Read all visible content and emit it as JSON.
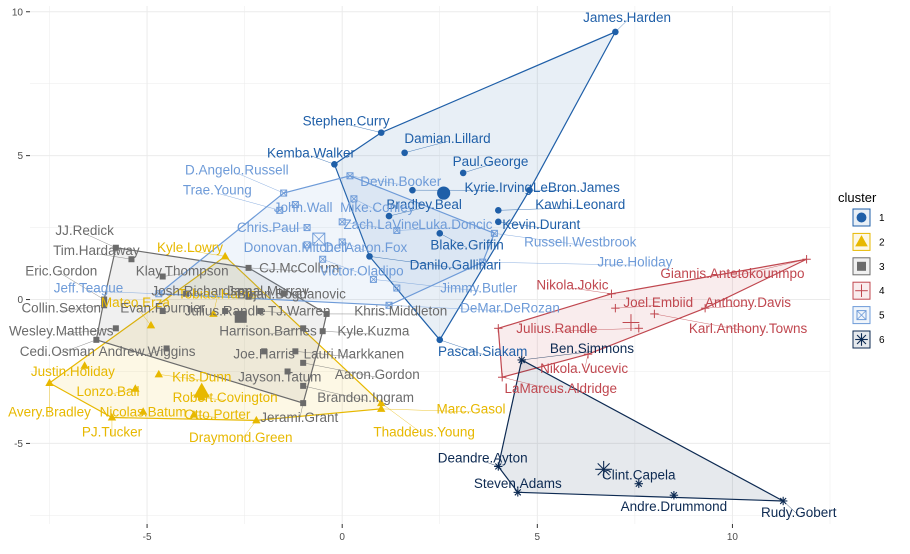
{
  "chart_data": {
    "type": "scatter",
    "title": "",
    "xlabel": "",
    "ylabel": "",
    "xlim": [
      -8.0,
      12.5
    ],
    "ylim": [
      -7.8,
      10.2
    ],
    "x_ticks": [
      -5,
      0,
      5,
      10
    ],
    "y_ticks": [
      -5,
      0,
      5,
      10
    ],
    "x_tick_labels": [
      "-5",
      "0",
      "5",
      "10"
    ],
    "y_tick_labels": [
      "-5",
      "0",
      "5",
      "10"
    ],
    "grid": true,
    "legend": {
      "title": "cluster",
      "position": "right",
      "entries": [
        {
          "label": "1",
          "cluster": 1
        },
        {
          "label": "2",
          "cluster": 2
        },
        {
          "label": "3",
          "cluster": 3
        },
        {
          "label": "4",
          "cluster": 4
        },
        {
          "label": "5",
          "cluster": 5
        },
        {
          "label": "6",
          "cluster": 6
        }
      ]
    },
    "colors": {
      "1": "#1f5fa8",
      "2": "#e7b800",
      "3": "#6b6b6b",
      "4": "#c0474f",
      "5": "#6e9bd8",
      "6": "#0d2a52"
    },
    "centroids": [
      {
        "cluster": 1,
        "x": 2.6,
        "y": 3.7
      },
      {
        "cluster": 2,
        "x": -3.6,
        "y": -3.2
      },
      {
        "cluster": 3,
        "x": -2.6,
        "y": -0.6
      },
      {
        "cluster": 4,
        "x": 7.4,
        "y": -0.8
      },
      {
        "cluster": 5,
        "x": -0.6,
        "y": 2.1
      },
      {
        "cluster": 6,
        "x": 6.7,
        "y": -5.9
      }
    ],
    "series": [
      {
        "cluster": 1,
        "points": [
          {
            "x": 7.0,
            "y": 9.3,
            "label": "James.Harden",
            "lx": 7.3,
            "ly": 9.8
          },
          {
            "x": 1.0,
            "y": 5.8,
            "label": "Stephen.Curry",
            "lx": 0.1,
            "ly": 6.2
          },
          {
            "x": 1.6,
            "y": 5.1,
            "label": "Damian.Lillard",
            "lx": 2.7,
            "ly": 5.6
          },
          {
            "x": -0.2,
            "y": 4.7,
            "label": "Kemba.Walker",
            "lx": -0.8,
            "ly": 5.1
          },
          {
            "x": 3.1,
            "y": 4.4,
            "label": "Paul.George",
            "lx": 3.8,
            "ly": 4.8
          },
          {
            "x": 1.8,
            "y": 3.8,
            "label": "Kyrie.Irving",
            "lx": 4.0,
            "ly": 3.9
          },
          {
            "x": 4.8,
            "y": 3.8,
            "label": "LeBron.James",
            "lx": 6.0,
            "ly": 3.9
          },
          {
            "x": 1.2,
            "y": 2.9,
            "label": "Bradley.Beal",
            "lx": 2.1,
            "ly": 3.3
          },
          {
            "x": 4.0,
            "y": 3.1,
            "label": "Kawhi.Leonard",
            "lx": 6.1,
            "ly": 3.3
          },
          {
            "x": 4.0,
            "y": 2.7,
            "label": "Kevin.Durant",
            "lx": 5.1,
            "ly": 2.6
          },
          {
            "x": 2.5,
            "y": 2.3,
            "label": "Blake.Griffin",
            "lx": 3.2,
            "ly": 1.9
          },
          {
            "x": 0.7,
            "y": 1.5,
            "label": "Danilo.Gallinari",
            "lx": 2.9,
            "ly": 1.2
          },
          {
            "x": 2.5,
            "y": -1.4,
            "label": "Pascal.Siakam",
            "lx": 3.6,
            "ly": -1.8
          }
        ]
      },
      {
        "cluster": 2,
        "points": [
          {
            "x": -3.0,
            "y": 1.5,
            "label": "Kyle.Lowry",
            "lx": -3.9,
            "ly": 1.8
          },
          {
            "x": -4.9,
            "y": -0.9,
            "label": "Mateo.Erza",
            "lx": -5.3,
            "ly": -0.1
          },
          {
            "x": -6.6,
            "y": -2.3,
            "label": "Justin.Holiday",
            "lx": -6.9,
            "ly": -2.5
          },
          {
            "x": -4.7,
            "y": -2.6,
            "label": "Kris.Dunn",
            "lx": -3.6,
            "ly": -2.7
          },
          {
            "x": -5.3,
            "y": -3.1,
            "label": "Lonzo.Ball",
            "lx": -6.0,
            "ly": -3.2
          },
          {
            "x": -7.5,
            "y": -2.9,
            "label": "Avery.Bradley",
            "lx": -7.5,
            "ly": -3.9
          },
          {
            "x": -5.1,
            "y": -3.9,
            "label": "Nicolas.Batum",
            "lx": -5.1,
            "ly": -3.9
          },
          {
            "x": -3.6,
            "y": -3.4,
            "label": "Robert.Covington",
            "lx": -3.0,
            "ly": -3.4
          },
          {
            "x": -3.8,
            "y": -4.0,
            "label": "Otto.Porter",
            "lx": -3.2,
            "ly": -4.0
          },
          {
            "x": -5.9,
            "y": -4.1,
            "label": "PJ.Tucker",
            "lx": -5.9,
            "ly": -4.6
          },
          {
            "x": -2.2,
            "y": -4.2,
            "label": "Draymond.Green",
            "lx": -2.6,
            "ly": -4.8
          },
          {
            "x": 1.0,
            "y": -3.8,
            "label": "Marc.Gasol",
            "lx": 3.3,
            "ly": -3.8
          },
          {
            "x": 1.0,
            "y": -3.6,
            "label": "Thaddeus.Young",
            "lx": 2.1,
            "ly": -4.6
          },
          {
            "x": -3.3,
            "y": -0.5,
            "label": "Tobias.Harris",
            "lx": -3.2,
            "ly": 0.2
          }
        ]
      },
      {
        "cluster": 3,
        "points": [
          {
            "x": -5.8,
            "y": 1.8,
            "label": "JJ.Redick",
            "lx": -6.6,
            "ly": 2.4
          },
          {
            "x": -5.4,
            "y": 1.4,
            "label": "Tim.Hardaway",
            "lx": -6.3,
            "ly": 1.7
          },
          {
            "x": -4.6,
            "y": 0.8,
            "label": "Klay.Thompson",
            "lx": -4.1,
            "ly": 1.0
          },
          {
            "x": -6.1,
            "y": 0.0,
            "label": "Eric.Gordon",
            "lx": -7.2,
            "ly": 1.0
          },
          {
            "x": -2.4,
            "y": 1.1,
            "label": "CJ.McCollum",
            "lx": -1.1,
            "ly": 1.1
          },
          {
            "x": -4.0,
            "y": 0.2,
            "label": "Josh.Richardson",
            "lx": -3.6,
            "ly": 0.3
          },
          {
            "x": -2.4,
            "y": 0.1,
            "label": "Jamal.Murray",
            "lx": -1.9,
            "ly": 0.3
          },
          {
            "x": -1.5,
            "y": 0.2,
            "label": "Bojan.Bogdanovic",
            "lx": -1.3,
            "ly": 0.2
          },
          {
            "x": -6.1,
            "y": -0.2,
            "label": "Collin.Sexton",
            "lx": -7.2,
            "ly": -0.3
          },
          {
            "x": -4.6,
            "y": -0.4,
            "label": "Evan.Fournier",
            "lx": -4.6,
            "ly": -0.3
          },
          {
            "x": -2.1,
            "y": -0.4,
            "label": "TJ.Warren",
            "lx": -1.1,
            "ly": -0.4
          },
          {
            "x": -0.4,
            "y": -0.5,
            "label": "Khris.Middleton",
            "lx": 1.5,
            "ly": -0.4
          },
          {
            "x": -5.8,
            "y": -1.0,
            "label": "Wesley.Matthews",
            "lx": -7.2,
            "ly": -1.1
          },
          {
            "x": -1.0,
            "y": -1.0,
            "label": "Harrison.Barnes",
            "lx": -1.9,
            "ly": -1.1
          },
          {
            "x": -0.5,
            "y": -1.1,
            "label": "Kyle.Kuzma",
            "lx": 0.8,
            "ly": -1.1
          },
          {
            "x": -6.3,
            "y": -1.4,
            "label": "Cedi.Osman",
            "lx": -7.3,
            "ly": -1.8
          },
          {
            "x": -4.5,
            "y": -1.7,
            "label": "Andrew.Wiggins",
            "lx": -5.0,
            "ly": -1.8
          },
          {
            "x": -2.0,
            "y": -1.8,
            "label": "Joe.Harris",
            "lx": -2.0,
            "ly": -1.9
          },
          {
            "x": -1.2,
            "y": -1.8,
            "label": "Lauri.Markkanen",
            "lx": 0.3,
            "ly": -1.9
          },
          {
            "x": -1.0,
            "y": -2.2,
            "label": "Aaron.Gordon",
            "lx": 0.9,
            "ly": -2.6
          },
          {
            "x": -1.4,
            "y": -2.5,
            "label": "Jayson.Tatum",
            "lx": -1.6,
            "ly": -2.7
          },
          {
            "x": -1.0,
            "y": -3.0,
            "label": "Brandon.Ingram",
            "lx": 0.6,
            "ly": -3.4
          },
          {
            "x": -1.0,
            "y": -3.6,
            "label": "Jerami.Grant",
            "lx": -1.1,
            "ly": -4.1
          },
          {
            "x": -3.0,
            "y": -0.4,
            "label": "Julius.Randle",
            "lx": -3.0,
            "ly": -0.4
          }
        ]
      },
      {
        "cluster": 4,
        "points": [
          {
            "x": 11.9,
            "y": 1.4,
            "label": "Giannis.Antetokounmpo",
            "lx": 10.0,
            "ly": 0.9
          },
          {
            "x": 6.9,
            "y": 0.2,
            "label": "Nikola.Jokic",
            "lx": 5.9,
            "ly": 0.5
          },
          {
            "x": 7.0,
            "y": -0.3,
            "label": "Joel.Embiid",
            "lx": 8.1,
            "ly": -0.1
          },
          {
            "x": 9.3,
            "y": -0.3,
            "label": "Anthony.Davis",
            "lx": 10.4,
            "ly": -0.1
          },
          {
            "x": 8.0,
            "y": -0.5,
            "label": "Karl.Anthony.Towns",
            "lx": 10.4,
            "ly": -1.0
          },
          {
            "x": 7.6,
            "y": -1.0,
            "label": "Julius.Randle",
            "lx": 5.5,
            "ly": -1.0
          },
          {
            "x": 6.3,
            "y": -1.9,
            "label": "Nikola.Vucevic",
            "lx": 6.2,
            "ly": -2.4
          },
          {
            "x": 4.1,
            "y": -2.7,
            "label": "LaMarcus.Aldridge",
            "lx": 5.6,
            "ly": -3.1
          },
          {
            "x": 4.0,
            "y": -1.0,
            "label": "",
            "lx": 0,
            "ly": 0
          }
        ]
      },
      {
        "cluster": 5,
        "points": [
          {
            "x": -1.5,
            "y": 3.7,
            "label": "D.Angelo.Russell",
            "lx": -2.7,
            "ly": 4.5
          },
          {
            "x": -1.6,
            "y": 3.1,
            "label": "Trae.Young",
            "lx": -3.2,
            "ly": 3.8
          },
          {
            "x": -1.2,
            "y": 3.3,
            "label": "John.Wall",
            "lx": -1.0,
            "ly": 3.2
          },
          {
            "x": 0.3,
            "y": 3.5,
            "label": "Mike.Conley",
            "lx": 0.9,
            "ly": 3.2
          },
          {
            "x": 0.2,
            "y": 4.3,
            "label": "Devin.Booker",
            "lx": 1.5,
            "ly": 4.1
          },
          {
            "x": -0.9,
            "y": 2.5,
            "label": "Chris.Paul",
            "lx": -1.9,
            "ly": 2.5
          },
          {
            "x": 0.0,
            "y": 2.7,
            "label": "Zach.LaVine",
            "lx": 1.0,
            "ly": 2.6
          },
          {
            "x": 1.4,
            "y": 2.4,
            "label": "Luka.Doncic",
            "lx": 2.9,
            "ly": 2.6
          },
          {
            "x": -0.9,
            "y": 1.9,
            "label": "Donovan.Mitchell",
            "lx": -1.2,
            "ly": 1.8
          },
          {
            "x": 0.0,
            "y": 2.0,
            "label": "De.Aaron.Fox",
            "lx": 0.6,
            "ly": 1.8
          },
          {
            "x": 3.9,
            "y": 2.3,
            "label": "Russell.Westbrook",
            "lx": 6.1,
            "ly": 2.0
          },
          {
            "x": -0.5,
            "y": 1.4,
            "label": "Victor.Oladipo",
            "lx": 0.5,
            "ly": 1.0
          },
          {
            "x": 3.6,
            "y": 1.3,
            "label": "Jrue.Holiday",
            "lx": 7.5,
            "ly": 1.3
          },
          {
            "x": 0.8,
            "y": 0.7,
            "label": "Jimmy.Butler",
            "lx": 3.5,
            "ly": 0.4
          },
          {
            "x": -4.7,
            "y": 0.2,
            "label": "Jeff.Teague",
            "lx": -6.5,
            "ly": 0.4
          },
          {
            "x": 1.2,
            "y": -0.2,
            "label": "DeMar.DeRozan",
            "lx": 4.3,
            "ly": -0.3
          },
          {
            "x": 1.4,
            "y": 0.4,
            "label": "",
            "lx": 0,
            "ly": 0
          }
        ]
      },
      {
        "cluster": 6,
        "points": [
          {
            "x": 4.6,
            "y": -2.1,
            "label": "Ben.Simmons",
            "lx": 6.4,
            "ly": -1.7
          },
          {
            "x": 4.0,
            "y": -5.8,
            "label": "Deandre.Ayton",
            "lx": 3.6,
            "ly": -5.5
          },
          {
            "x": 4.5,
            "y": -6.7,
            "label": "Steven.Adams",
            "lx": 4.5,
            "ly": -6.4
          },
          {
            "x": 7.6,
            "y": -6.4,
            "label": "Clint.Capela",
            "lx": 7.6,
            "ly": -6.1
          },
          {
            "x": 8.5,
            "y": -6.8,
            "label": "Andre.Drummond",
            "lx": 8.5,
            "ly": -7.2
          },
          {
            "x": 11.3,
            "y": -7.0,
            "label": "Rudy.Gobert",
            "lx": 11.7,
            "ly": -7.4
          }
        ]
      }
    ]
  }
}
